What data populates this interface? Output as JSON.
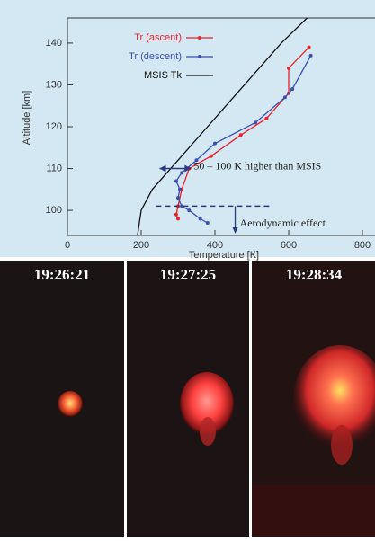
{
  "chart_data": {
    "type": "line",
    "xlabel": "Temperature  [K]",
    "ylabel": "Altitude  [km]",
    "xlim": [
      0,
      800
    ],
    "ylim": [
      94,
      146
    ],
    "xticks": [
      0,
      200,
      400,
      600,
      800
    ],
    "yticks": [
      100,
      110,
      120,
      130,
      140
    ],
    "series": [
      {
        "name": "Tr (ascent)",
        "color": "#e8212a",
        "markers": true,
        "x": [
          655,
          600,
          600,
          540,
          470,
          390,
          330,
          310,
          300,
          295,
          300
        ],
        "values": [
          139,
          134,
          128,
          122,
          118,
          113,
          110,
          105,
          101,
          99,
          98
        ]
      },
      {
        "name": "Tr (descent)",
        "color": "#3b4fb0",
        "markers": true,
        "x": [
          660,
          610,
          590,
          510,
          400,
          350,
          310,
          295,
          305,
          300,
          310,
          330,
          360,
          380
        ],
        "values": [
          137,
          129,
          127,
          121,
          116,
          112,
          109,
          107,
          105,
          103,
          101,
          100,
          98,
          97
        ]
      },
      {
        "name": "MSIS Tk",
        "color": "#111111",
        "markers": false,
        "x": [
          190,
          200,
          230,
          280,
          380,
          480,
          580,
          650
        ],
        "values": [
          94,
          100,
          105,
          110,
          120,
          130,
          140,
          146
        ]
      }
    ],
    "annotations": [
      {
        "text": "50 – 100 K higher than MSIS",
        "x": [
          250,
          335
        ],
        "y": 110
      },
      {
        "text": "Aerodynamic effect",
        "x": [
          240,
          550
        ],
        "y": 101,
        "arrow_x": 455
      }
    ]
  },
  "panels": [
    {
      "time": "19:26:21"
    },
    {
      "time": "19:27:25"
    },
    {
      "time": "19:28:34"
    }
  ]
}
